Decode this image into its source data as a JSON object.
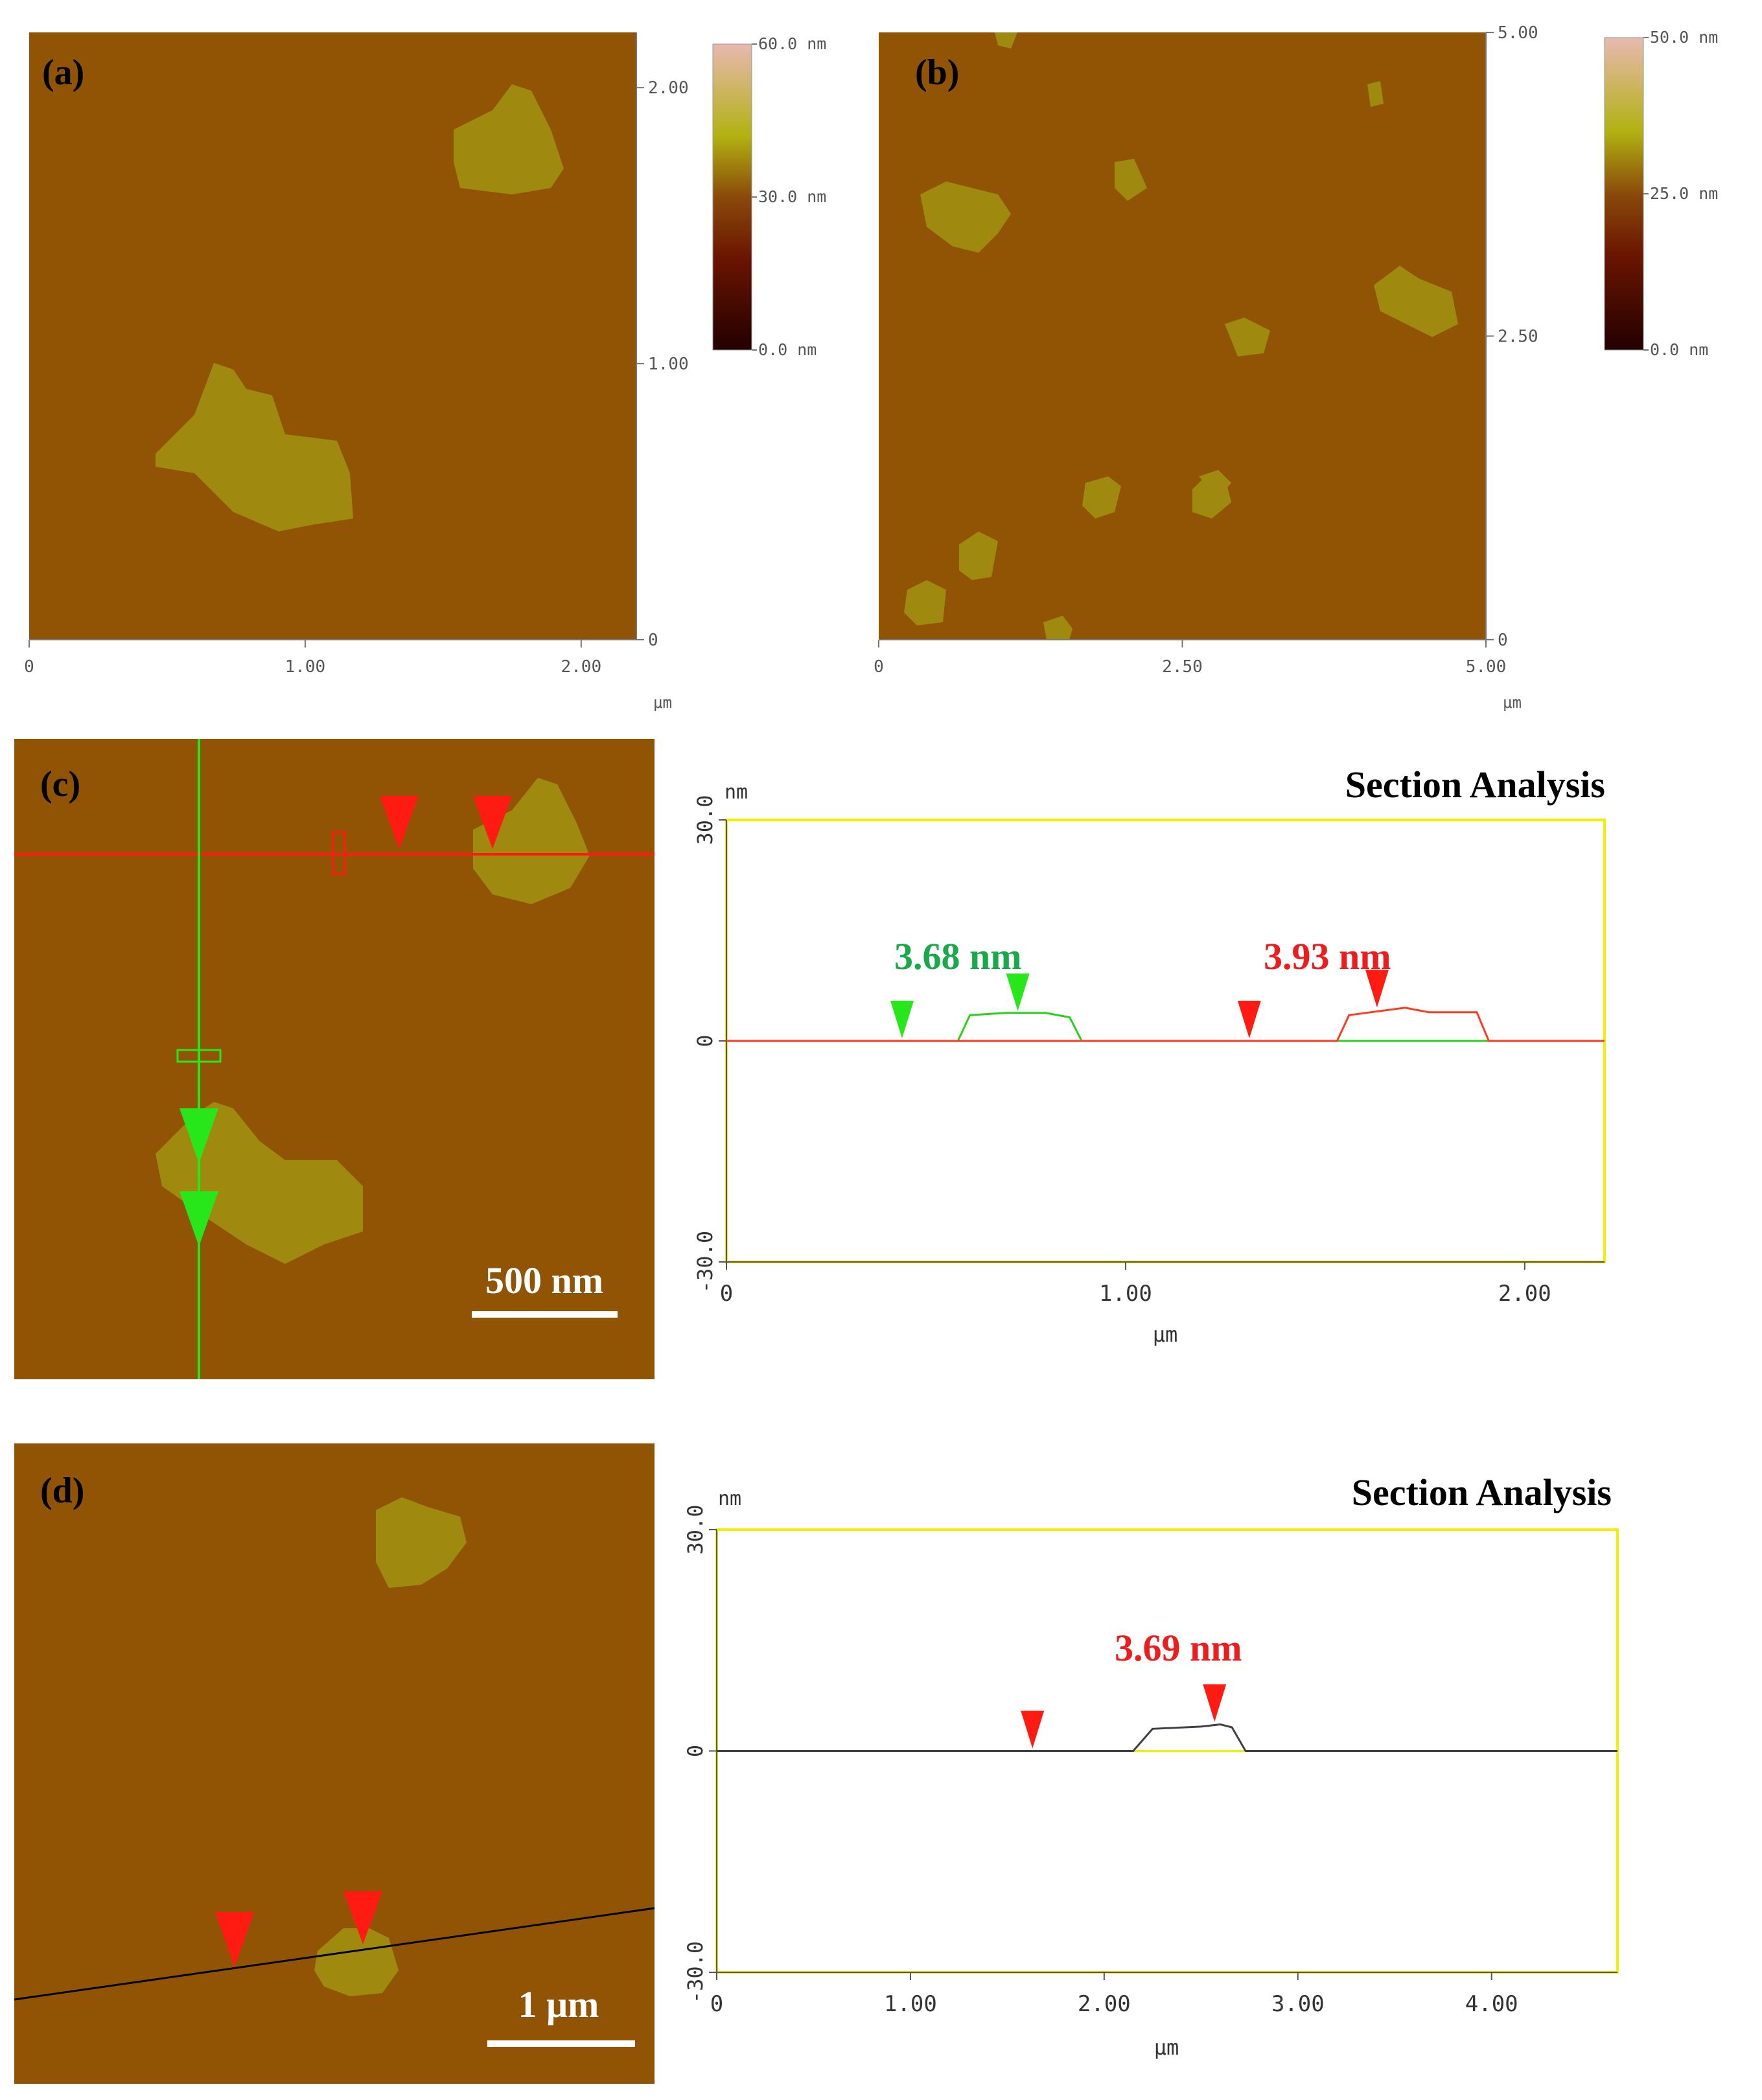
{
  "panels": {
    "a": {
      "label": "(a)"
    },
    "b": {
      "label": "(b)"
    },
    "c": {
      "label": "(c)",
      "scalebar": "500 nm"
    },
    "d": {
      "label": "(d)",
      "scalebar": "1 μm"
    }
  },
  "colors": {
    "surface": "#905404",
    "flake": "#9f8a0f",
    "green_marker": "#27e71b",
    "red_marker": "#ff1a12",
    "plot_frame": "#f2f000",
    "profile_red": "#ff3a22",
    "profile_green": "#27d21b",
    "profile_black": "#404040",
    "label_green": "#19a84a",
    "label_red": "#ee1c1c"
  },
  "chart_data": [
    {
      "type": "heatmap",
      "panel": "a",
      "x_ticks": [
        "0",
        "1.00",
        "2.00"
      ],
      "y_ticks": [
        "0",
        "1.00",
        "2.00"
      ],
      "x_unit": "μm",
      "xlim": [
        0,
        2.2
      ],
      "ylim": [
        0,
        2.2
      ],
      "colorbar": {
        "ticks": [
          "0.0 nm",
          "30.0 nm",
          "60.0 nm"
        ],
        "range": [
          0,
          60
        ]
      }
    },
    {
      "type": "heatmap",
      "panel": "b",
      "x_ticks": [
        "0",
        "2.50",
        "5.00"
      ],
      "y_ticks": [
        "0",
        "2.50",
        "5.00"
      ],
      "x_unit": "μm",
      "xlim": [
        0,
        5.0
      ],
      "ylim": [
        0,
        5.0
      ],
      "colorbar": {
        "ticks": [
          "0.0 nm",
          "25.0 nm",
          "50.0 nm"
        ],
        "range": [
          0,
          50
        ]
      }
    },
    {
      "type": "line",
      "panel": "c",
      "title": "Section Analysis",
      "y_unit": "nm",
      "x_unit": "μm",
      "x_ticks": [
        "0",
        "1.00",
        "2.00"
      ],
      "y_ticks": [
        "30.0",
        "0",
        "-30.0"
      ],
      "xlim": [
        0,
        2.2
      ],
      "ylim": [
        -30,
        30
      ],
      "series": [
        {
          "color": "green",
          "x": [
            0,
            0.58,
            0.61,
            0.7,
            0.8,
            0.86,
            0.89,
            2.2
          ],
          "y": [
            0,
            0,
            3.5,
            3.8,
            3.8,
            3.2,
            0,
            0
          ]
        },
        {
          "color": "red",
          "x": [
            0,
            1.53,
            1.56,
            1.7,
            1.76,
            1.88,
            1.91,
            2.2
          ],
          "y": [
            0,
            0,
            3.5,
            4.5,
            3.9,
            3.9,
            0,
            0
          ]
        }
      ],
      "markers": [
        {
          "color": "green",
          "x": 0.44,
          "y": 0
        },
        {
          "color": "green",
          "x": 0.73,
          "y": 3.7
        },
        {
          "color": "red",
          "x": 1.31,
          "y": 0
        },
        {
          "color": "red",
          "x": 1.63,
          "y": 4.2
        }
      ],
      "annotations": [
        {
          "text": "3.68 nm",
          "color": "green"
        },
        {
          "text": "3.93 nm",
          "color": "red"
        }
      ]
    },
    {
      "type": "line",
      "panel": "d",
      "title": "Section Analysis",
      "y_unit": "nm",
      "x_unit": "μm",
      "x_ticks": [
        "0",
        "1.00",
        "2.00",
        "3.00",
        "4.00"
      ],
      "y_ticks": [
        "30.0",
        "0",
        "-30.0"
      ],
      "xlim": [
        0,
        4.65
      ],
      "ylim": [
        -30,
        30
      ],
      "series": [
        {
          "color": "black",
          "x": [
            0,
            2.15,
            2.25,
            2.5,
            2.6,
            2.66,
            2.73,
            4.65
          ],
          "y": [
            0,
            0,
            3.0,
            3.3,
            3.6,
            3.2,
            0,
            0
          ]
        }
      ],
      "markers": [
        {
          "color": "red",
          "x": 1.63,
          "y": 0
        },
        {
          "color": "red",
          "x": 2.57,
          "y": 3.6
        }
      ],
      "annotations": [
        {
          "text": "3.69 nm",
          "color": "red"
        }
      ]
    }
  ]
}
